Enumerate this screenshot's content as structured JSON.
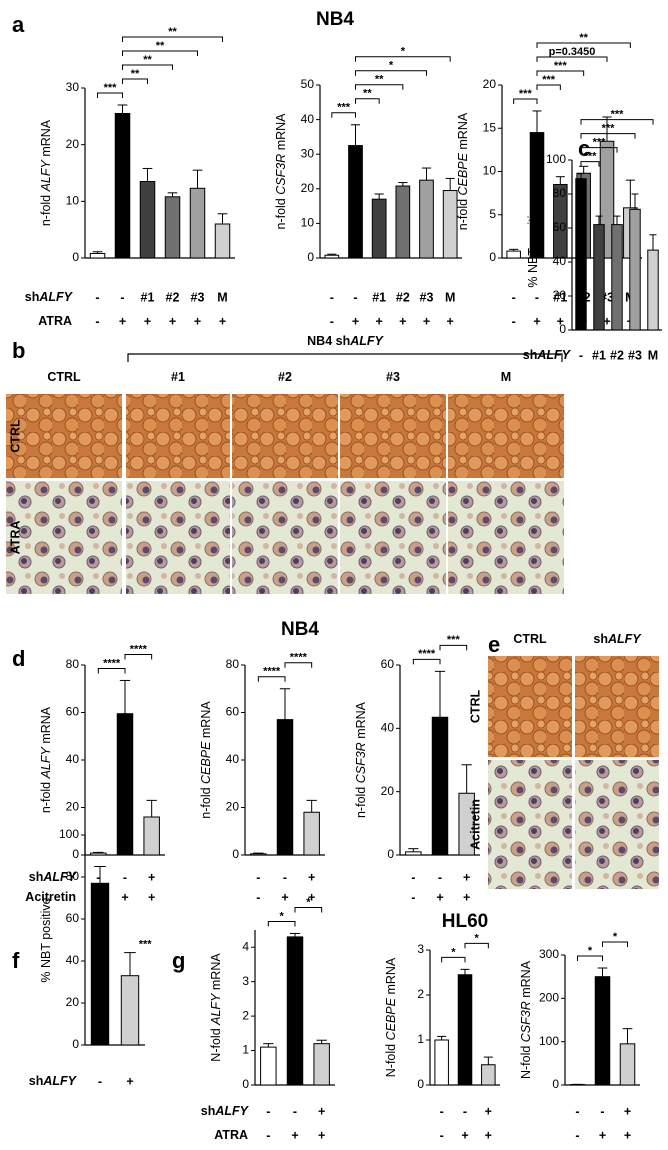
{
  "chart_data": [
    {
      "type": "bar",
      "panel": "a",
      "ylabel_parts": [
        "n-fold ",
        "ALFY",
        " mRNA"
      ],
      "ylim": [
        0,
        30
      ],
      "yticks": [
        0,
        10,
        20,
        30
      ],
      "values": [
        0.8,
        25.5,
        13.5,
        10.8,
        12.3,
        6.0
      ],
      "errors": [
        0.3,
        1.5,
        2.3,
        0.7,
        3.2,
        1.8
      ],
      "colors": [
        "#ffffff",
        "#000000",
        "#404040",
        "#707070",
        "#a0a0a0",
        "#d0d0d0"
      ],
      "brackets": [
        {
          "from": 0,
          "to": 1,
          "label": "***"
        },
        {
          "from": 1,
          "to": 2,
          "label": "**"
        },
        {
          "from": 1,
          "to": 3,
          "label": "**"
        },
        {
          "from": 1,
          "to": 4,
          "label": "**"
        },
        {
          "from": 1,
          "to": 5,
          "label": "**"
        }
      ],
      "rows": [
        {
          "name_parts": [
            "sh",
            "ALFY"
          ],
          "labels": [
            "-",
            "-",
            "#1",
            "#2",
            "#3",
            "M"
          ]
        },
        {
          "name_parts": [
            "ATRA"
          ],
          "labels": [
            "-",
            "+",
            "+",
            "+",
            "+",
            "+"
          ]
        }
      ]
    },
    {
      "type": "bar",
      "title": "NB4",
      "ylabel_parts": [
        "n-fold ",
        "CSF3R",
        " mRNA"
      ],
      "ylim": [
        0,
        50
      ],
      "yticks": [
        0,
        10,
        20,
        30,
        40,
        50
      ],
      "values": [
        0.8,
        32.5,
        17,
        20.8,
        22.5,
        19.5
      ],
      "errors": [
        0.3,
        6,
        1.5,
        1,
        3.5,
        3.5
      ],
      "colors": [
        "#ffffff",
        "#000000",
        "#404040",
        "#707070",
        "#a0a0a0",
        "#d0d0d0"
      ],
      "brackets": [
        {
          "from": 0,
          "to": 1,
          "label": "***"
        },
        {
          "from": 1,
          "to": 2,
          "label": "**"
        },
        {
          "from": 1,
          "to": 3,
          "label": "**"
        },
        {
          "from": 1,
          "to": 4,
          "label": "*"
        },
        {
          "from": 1,
          "to": 5,
          "label": "*"
        }
      ],
      "rows": [
        {
          "labels": [
            "-",
            "-",
            "#1",
            "#2",
            "#3",
            "M"
          ]
        },
        {
          "labels": [
            "-",
            "+",
            "+",
            "+",
            "+",
            "+"
          ]
        }
      ]
    },
    {
      "type": "bar",
      "ylabel_parts": [
        "n-fold ",
        "CEBPE",
        " mRNA"
      ],
      "ylim": [
        0,
        20
      ],
      "yticks": [
        0,
        5,
        10,
        15,
        20
      ],
      "values": [
        0.8,
        14.5,
        8.5,
        9.8,
        13.5,
        5.8
      ],
      "errors": [
        0.2,
        2.5,
        0.9,
        0.8,
        2.8,
        3.2
      ],
      "colors": [
        "#ffffff",
        "#000000",
        "#404040",
        "#707070",
        "#a0a0a0",
        "#d0d0d0"
      ],
      "brackets": [
        {
          "from": 0,
          "to": 1,
          "label": "***"
        },
        {
          "from": 1,
          "to": 2,
          "label": "***"
        },
        {
          "from": 1,
          "to": 3,
          "label": "***"
        },
        {
          "from": 1,
          "to": 4,
          "label": "p=0.3450"
        },
        {
          "from": 1,
          "to": 5,
          "label": "**"
        }
      ],
      "rows": [
        {
          "labels": [
            "-",
            "-",
            "#1",
            "#2",
            "#3",
            "M"
          ]
        },
        {
          "labels": [
            "-",
            "+",
            "+",
            "+",
            "+",
            "+"
          ]
        }
      ]
    },
    {
      "type": "bar",
      "panel": "c",
      "ylabel_parts": [
        "% NBT positive"
      ],
      "ylim": [
        0,
        100
      ],
      "yticks": [
        0,
        20,
        40,
        60,
        80,
        100
      ],
      "values": [
        89,
        62,
        62,
        71,
        47
      ],
      "errors": [
        3,
        5,
        5,
        9,
        9
      ],
      "colors": [
        "#000000",
        "#404040",
        "#707070",
        "#a0a0a0",
        "#d0d0d0"
      ],
      "brackets": [
        {
          "from": 0,
          "to": 1,
          "label": "***"
        },
        {
          "from": 0,
          "to": 2,
          "label": "***"
        },
        {
          "from": 0,
          "to": 3,
          "label": "***"
        },
        {
          "from": 0,
          "to": 4,
          "label": "***"
        }
      ],
      "rows": [
        {
          "name_parts": [
            "sh",
            "ALFY"
          ],
          "labels": [
            "-",
            "#1",
            "#2",
            "#3",
            "M"
          ]
        }
      ]
    },
    {
      "type": "bar",
      "panel": "d",
      "ylabel_parts": [
        "n-fold ",
        "ALFY",
        " mRNA"
      ],
      "ylim": [
        0,
        80
      ],
      "yticks": [
        0,
        20,
        40,
        60,
        80
      ],
      "values": [
        0.8,
        59.5,
        16
      ],
      "errors": [
        0.3,
        14,
        7
      ],
      "colors": [
        "#ffffff",
        "#000000",
        "#d0d0d0"
      ],
      "brackets": [
        {
          "from": 0,
          "to": 1,
          "label": "****"
        },
        {
          "from": 1,
          "to": 2,
          "label": "****"
        }
      ],
      "rows": [
        {
          "name_parts": [
            "sh",
            "ALFY"
          ],
          "labels": [
            "-",
            "-",
            "+"
          ]
        },
        {
          "name_parts": [
            "Acitretin"
          ],
          "labels": [
            "-",
            "+",
            "+"
          ]
        }
      ]
    },
    {
      "type": "bar",
      "title": "NB4",
      "ylabel_parts": [
        "n-fold ",
        "CEBPE",
        " mRNA"
      ],
      "ylim": [
        0,
        80
      ],
      "yticks": [
        0,
        20,
        40,
        60,
        80
      ],
      "values": [
        0.5,
        57,
        18
      ],
      "errors": [
        0.3,
        13,
        5
      ],
      "colors": [
        "#ffffff",
        "#000000",
        "#d0d0d0"
      ],
      "brackets": [
        {
          "from": 0,
          "to": 1,
          "label": "****"
        },
        {
          "from": 1,
          "to": 2,
          "label": "****"
        }
      ],
      "rows": [
        {
          "labels": [
            "-",
            "-",
            "+"
          ]
        },
        {
          "labels": [
            "-",
            "+",
            "+"
          ]
        }
      ]
    },
    {
      "type": "bar",
      "ylabel_parts": [
        "n-fold ",
        "CSF3R",
        " mRNA"
      ],
      "ylim": [
        0,
        60
      ],
      "yticks": [
        0,
        20,
        40,
        60
      ],
      "values": [
        1,
        43.5,
        19.5
      ],
      "errors": [
        1,
        14.5,
        9
      ],
      "colors": [
        "#ffffff",
        "#000000",
        "#d0d0d0"
      ],
      "brackets": [
        {
          "from": 0,
          "to": 1,
          "label": "****"
        },
        {
          "from": 1,
          "to": 2,
          "label": "***"
        }
      ],
      "rows": [
        {
          "labels": [
            "-",
            "-",
            "+"
          ]
        },
        {
          "labels": [
            "-",
            "+",
            "+"
          ]
        }
      ]
    },
    {
      "type": "bar",
      "panel": "f",
      "ylabel_parts": [
        "% NBT positive"
      ],
      "ylim": [
        0,
        100
      ],
      "yticks": [
        0,
        20,
        40,
        60,
        80,
        100
      ],
      "values": [
        77,
        33
      ],
      "errors": [
        8,
        11
      ],
      "colors": [
        "#000000",
        "#d0d0d0"
      ],
      "annotations": [
        {
          "bar": 1,
          "label": "***"
        }
      ],
      "rows": [
        {
          "name_parts": [
            "sh",
            "ALFY"
          ],
          "labels": [
            "-",
            "+"
          ]
        }
      ]
    },
    {
      "type": "bar",
      "panel": "g",
      "ylabel_parts": [
        "N-fold ",
        "ALFY",
        " mRNA"
      ],
      "ylim": [
        0,
        4.5
      ],
      "yticks": [
        0,
        1,
        2,
        3,
        4
      ],
      "values": [
        1.1,
        4.3,
        1.2
      ],
      "errors": [
        0.1,
        0.1,
        0.1
      ],
      "colors": [
        "#ffffff",
        "#000000",
        "#d0d0d0"
      ],
      "brackets": [
        {
          "from": 0,
          "to": 1,
          "label": "*"
        },
        {
          "from": 1,
          "to": 2,
          "label": "*"
        }
      ],
      "rows": [
        {
          "name_parts": [
            "sh",
            "ALFY"
          ],
          "labels": [
            "-",
            "-",
            "+"
          ]
        },
        {
          "name_parts": [
            "ATRA"
          ],
          "labels": [
            "-",
            "+",
            "+"
          ]
        }
      ]
    },
    {
      "type": "bar",
      "title": "HL60",
      "ylabel_parts": [
        "N-fold ",
        "CEBPE",
        " mRNA"
      ],
      "ylim": [
        0,
        3
      ],
      "yticks": [
        0,
        1,
        2,
        3
      ],
      "values": [
        1.0,
        2.45,
        0.45
      ],
      "errors": [
        0.08,
        0.12,
        0.17
      ],
      "colors": [
        "#ffffff",
        "#000000",
        "#d0d0d0"
      ],
      "brackets": [
        {
          "from": 0,
          "to": 1,
          "label": "*"
        },
        {
          "from": 1,
          "to": 2,
          "label": "*"
        }
      ],
      "rows": [
        {
          "labels": [
            "-",
            "-",
            "+"
          ]
        },
        {
          "labels": [
            "-",
            "+",
            "+"
          ]
        }
      ]
    },
    {
      "type": "bar",
      "ylabel_parts": [
        "N-fold ",
        "CSF3R",
        " mRNA"
      ],
      "ylim": [
        0,
        300
      ],
      "yticks": [
        0,
        100,
        200,
        300
      ],
      "values": [
        1,
        250,
        95
      ],
      "errors": [
        0.5,
        20,
        35
      ],
      "colors": [
        "#ffffff",
        "#000000",
        "#d0d0d0"
      ],
      "brackets": [
        {
          "from": 0,
          "to": 1,
          "label": "*"
        },
        {
          "from": 1,
          "to": 2,
          "label": "*"
        }
      ],
      "rows": [
        {
          "labels": [
            "-",
            "-",
            "+"
          ]
        },
        {
          "labels": [
            "-",
            "+",
            "+"
          ]
        }
      ]
    }
  ],
  "images": {
    "b": {
      "panel": "b",
      "header_parts": [
        "NB4 sh",
        "ALFY"
      ],
      "columns": [
        [
          "CTRL"
        ],
        [
          "#1"
        ],
        [
          "#2"
        ],
        [
          "#3"
        ],
        [
          "M"
        ]
      ],
      "rows": [
        "CTRL",
        "ATRA"
      ]
    },
    "e": {
      "panel": "e",
      "columns": [
        [
          "CTRL"
        ],
        [
          "sh",
          "ALFY"
        ]
      ],
      "rows": [
        "CTRL",
        "Acitretin"
      ]
    }
  }
}
